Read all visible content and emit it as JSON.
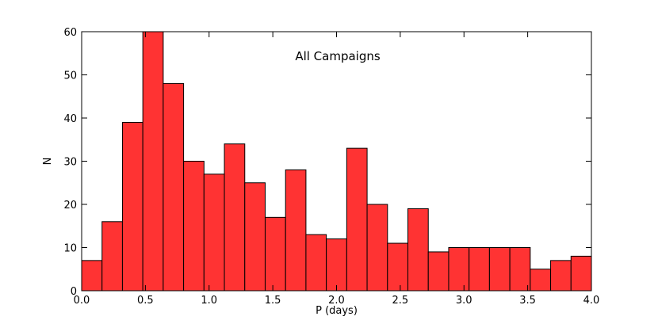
{
  "chart_data": {
    "type": "bar",
    "subtype": "histogram",
    "annotation": "All Campaigns",
    "title": "",
    "xlabel": "P (days)",
    "ylabel": "N",
    "xlim": [
      0,
      4.0
    ],
    "ylim": [
      0,
      60
    ],
    "x_ticks": [
      0.0,
      0.5,
      1.0,
      1.5,
      2.0,
      2.5,
      3.0,
      3.5,
      4.0
    ],
    "x_tick_labels": [
      "0.0",
      "0.5",
      "1.0",
      "1.5",
      "2.0",
      "2.5",
      "3.0",
      "3.5",
      "4.0"
    ],
    "y_ticks": [
      0,
      10,
      20,
      30,
      40,
      50,
      60
    ],
    "y_tick_labels": [
      "0",
      "10",
      "20",
      "30",
      "40",
      "50",
      "60"
    ],
    "bin_width": 0.16,
    "bin_starts": [
      0.0,
      0.16,
      0.32,
      0.48,
      0.64,
      0.8,
      0.96,
      1.12,
      1.28,
      1.44,
      1.6,
      1.76,
      1.92,
      2.08,
      2.24,
      2.4,
      2.56,
      2.72,
      2.88,
      3.04,
      3.2,
      3.36,
      3.52,
      3.68,
      3.84
    ],
    "values": [
      7,
      16,
      39,
      60,
      48,
      30,
      27,
      34,
      25,
      17,
      28,
      13,
      12,
      33,
      20,
      11,
      19,
      9,
      10,
      10,
      10,
      10,
      5,
      7,
      8
    ],
    "grid": false,
    "legend": "none",
    "bar_color": "#ff3333",
    "edge_color": "#000000"
  }
}
